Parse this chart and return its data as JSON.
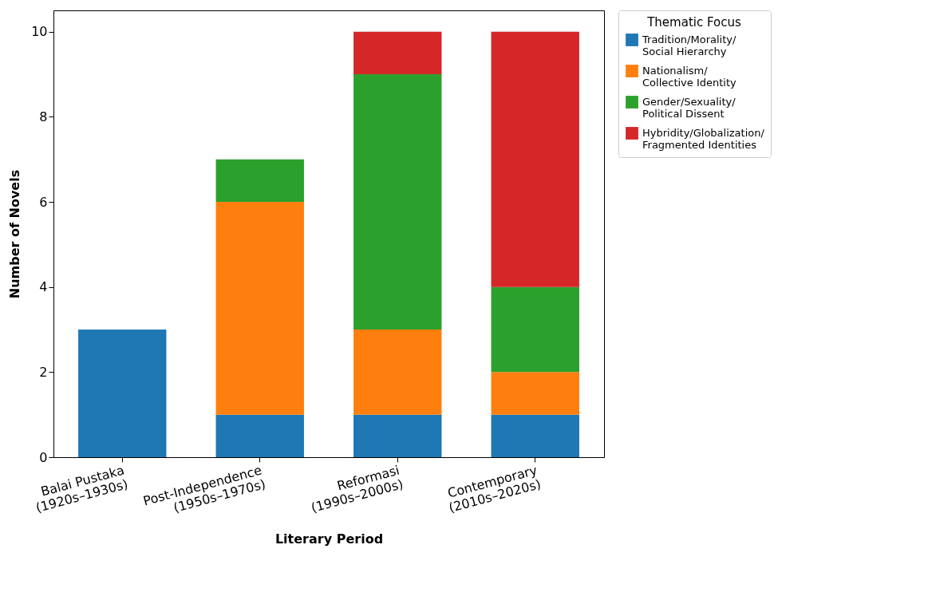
{
  "chart_data": {
    "type": "bar",
    "stacked": true,
    "xlabel": "Literary Period",
    "ylabel": "Number of Novels",
    "legend_title": "Thematic Focus",
    "categories": [
      "Balai Pustaka\n(1920s–1930s)",
      "Post-Independence\n(1950s–1970s)",
      "Reformasi\n(1990s–2000s)",
      "Contemporary\n(2010s–2020s)"
    ],
    "series": [
      {
        "name": "Tradition/Morality/\nSocial Hierarchy",
        "color": "#1f77b4",
        "values": [
          3,
          1,
          1,
          1
        ]
      },
      {
        "name": "Nationalism/\nCollective Identity",
        "color": "#ff7f0e",
        "values": [
          0,
          5,
          2,
          1
        ]
      },
      {
        "name": "Gender/Sexuality/\nPolitical Dissent",
        "color": "#2ca02c",
        "values": [
          0,
          1,
          6,
          2
        ]
      },
      {
        "name": "Hybridity/Globalization/\nFragmented Identities",
        "color": "#d62728",
        "values": [
          0,
          0,
          1,
          6
        ]
      }
    ],
    "ylim": [
      0,
      10.5
    ],
    "yticks": [
      0,
      2,
      4,
      6,
      8,
      10
    ],
    "grid": false,
    "legend": "top right"
  }
}
